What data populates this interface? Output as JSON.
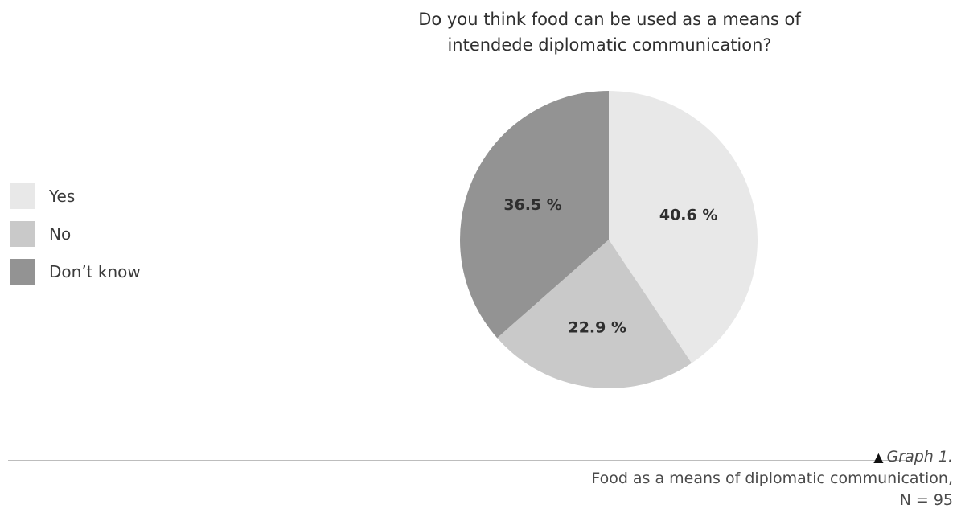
{
  "chart_data": {
    "type": "pie",
    "title_lines": [
      "Do you think food can be used as a means of",
      "intendede diplomatic communication?"
    ],
    "categories": [
      "Yes",
      "No",
      "Don’t know"
    ],
    "values": [
      40.6,
      22.9,
      36.5
    ],
    "value_labels": [
      "40.6 %",
      "22.9 %",
      "36.5 %"
    ],
    "colors": [
      "#e8e8e8",
      "#c9c9c9",
      "#939393"
    ],
    "legend_position": "left"
  },
  "caption": {
    "graph_label": "Graph 1.",
    "line1": "Food as a means of diplomatic communication,",
    "line2": "N = 95"
  }
}
